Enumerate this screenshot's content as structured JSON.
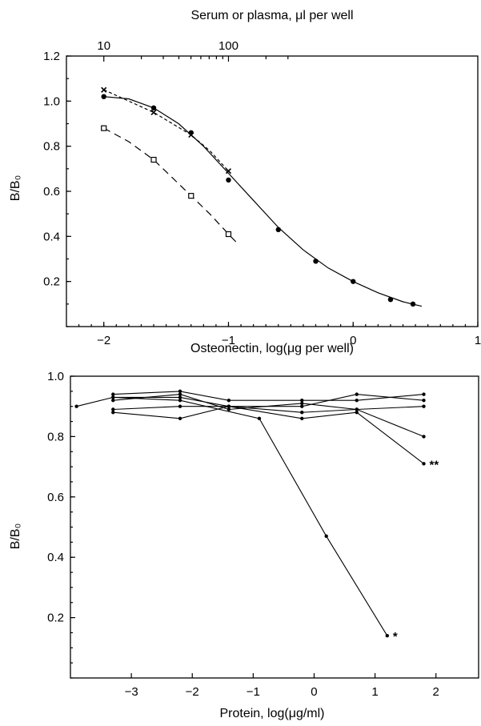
{
  "chart_data": [
    {
      "type": "line",
      "title": "",
      "xlabel": "Osteonectin, log(μg per well)",
      "ylabel": "B/B₀",
      "top_axis_label": "Serum or plasma, μl per well",
      "top_axis_ticks": [
        "10",
        "100"
      ],
      "top_axis_tick_x": [
        -2.0,
        -1.0
      ],
      "x_ticks": [
        "−2",
        "−1",
        "0",
        "1"
      ],
      "y_ticks": [
        "0.2",
        "0.4",
        "0.6",
        "0.8",
        "1.0",
        "1.2"
      ],
      "xlim": [
        -2.3,
        1.0
      ],
      "ylim": [
        0.0,
        1.2
      ],
      "grid": false,
      "series": [
        {
          "marker": "filled-circle",
          "line": "solid",
          "points": [
            [
              -2.0,
              1.02
            ],
            [
              -1.6,
              0.97
            ],
            [
              -1.3,
              0.86
            ],
            [
              -1.0,
              0.65
            ],
            [
              -0.6,
              0.43
            ],
            [
              -0.3,
              0.29
            ],
            [
              0.0,
              0.2
            ],
            [
              0.3,
              0.12
            ],
            [
              0.48,
              0.1
            ]
          ],
          "fit": [
            [
              -2.0,
              1.02
            ],
            [
              -1.8,
              1.01
            ],
            [
              -1.6,
              0.97
            ],
            [
              -1.4,
              0.9
            ],
            [
              -1.2,
              0.8
            ],
            [
              -1.0,
              0.68
            ],
            [
              -0.8,
              0.56
            ],
            [
              -0.6,
              0.44
            ],
            [
              -0.4,
              0.34
            ],
            [
              -0.2,
              0.26
            ],
            [
              0.0,
              0.2
            ],
            [
              0.2,
              0.15
            ],
            [
              0.4,
              0.11
            ],
            [
              0.55,
              0.09
            ]
          ]
        },
        {
          "marker": "x",
          "line": "short-dash",
          "points": [
            [
              -2.0,
              1.05
            ],
            [
              -1.6,
              0.95
            ],
            [
              -1.3,
              0.85
            ],
            [
              -1.0,
              0.69
            ]
          ],
          "fit": [
            [
              -2.0,
              1.05
            ],
            [
              -1.8,
              1.0
            ],
            [
              -1.6,
              0.95
            ],
            [
              -1.45,
              0.9
            ],
            [
              -1.3,
              0.85
            ],
            [
              -1.15,
              0.78
            ],
            [
              -1.0,
              0.69
            ]
          ]
        },
        {
          "marker": "open-square",
          "line": "long-dash",
          "points": [
            [
              -2.0,
              0.88
            ],
            [
              -1.6,
              0.74
            ],
            [
              -1.3,
              0.58
            ],
            [
              -1.0,
              0.41
            ]
          ],
          "fit": [
            [
              -2.0,
              0.88
            ],
            [
              -1.8,
              0.82
            ],
            [
              -1.6,
              0.74
            ],
            [
              -1.45,
              0.66
            ],
            [
              -1.3,
              0.58
            ],
            [
              -1.15,
              0.5
            ],
            [
              -1.0,
              0.41
            ],
            [
              -0.93,
              0.37
            ]
          ]
        }
      ]
    },
    {
      "type": "line",
      "title": "",
      "xlabel": "Protein, log(μg/ml)",
      "ylabel": "B/B₀",
      "x_ticks": [
        "−3",
        "−2",
        "−1",
        "0",
        "1",
        "2"
      ],
      "y_ticks": [
        "0.2",
        "0.4",
        "0.6",
        "0.8",
        "1.0"
      ],
      "xlim": [
        -4.0,
        2.7
      ],
      "ylim": [
        0.0,
        1.0
      ],
      "grid": false,
      "series": [
        {
          "points": [
            [
              -3.9,
              0.9
            ],
            [
              -3.3,
              0.93
            ],
            [
              -2.2,
              0.93
            ],
            [
              -1.4,
              0.9
            ],
            [
              -0.2,
              0.9
            ],
            [
              0.7,
              0.94
            ],
            [
              1.8,
              0.92
            ]
          ]
        },
        {
          "points": [
            [
              -3.3,
              0.94
            ],
            [
              -2.2,
              0.95
            ],
            [
              -1.4,
              0.92
            ],
            [
              -0.2,
              0.92
            ],
            [
              0.7,
              0.92
            ],
            [
              1.8,
              0.94
            ]
          ]
        },
        {
          "points": [
            [
              -3.3,
              0.92
            ],
            [
              -2.2,
              0.94
            ],
            [
              -1.4,
              0.89
            ],
            [
              -0.2,
              0.91
            ],
            [
              0.7,
              0.89
            ],
            [
              1.8,
              0.9
            ]
          ]
        },
        {
          "points": [
            [
              -3.3,
              0.89
            ],
            [
              -2.2,
              0.9
            ],
            [
              -1.4,
              0.9
            ],
            [
              -0.2,
              0.88
            ],
            [
              0.7,
              0.89
            ],
            [
              1.8,
              0.8
            ]
          ]
        },
        {
          "points": [
            [
              -3.3,
              0.88
            ],
            [
              -2.2,
              0.86
            ],
            [
              -1.4,
              0.9
            ],
            [
              -0.2,
              0.86
            ],
            [
              0.7,
              0.88
            ],
            [
              1.8,
              0.71
            ]
          ],
          "label": "**"
        },
        {
          "points": [
            [
              -3.3,
              0.93
            ],
            [
              -2.2,
              0.92
            ],
            [
              -0.9,
              0.86
            ],
            [
              0.2,
              0.47
            ],
            [
              1.2,
              0.14
            ]
          ],
          "label": "*"
        }
      ]
    }
  ]
}
